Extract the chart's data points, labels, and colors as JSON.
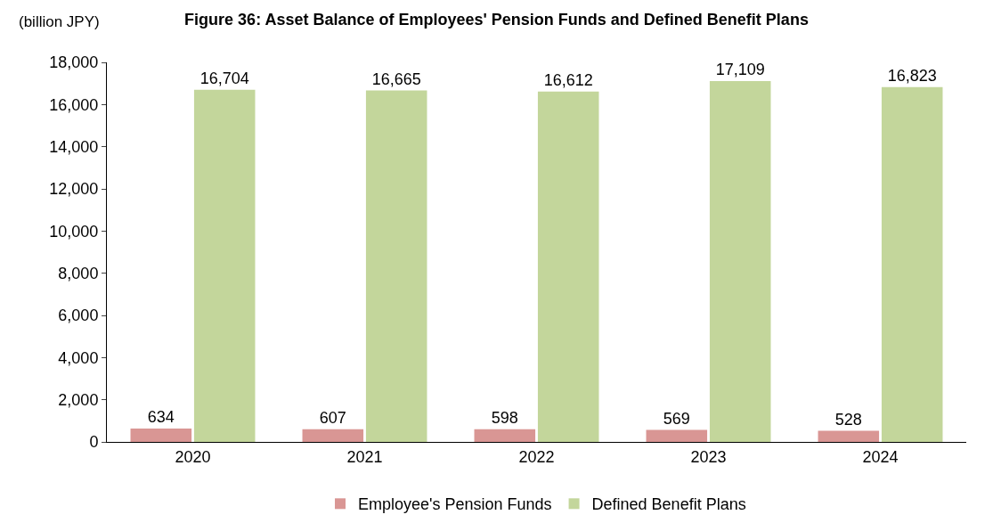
{
  "chart_data": {
    "type": "bar",
    "title": "Figure 36: Asset Balance of Employees' Pension Funds and Defined Benefit Plans",
    "ylabel": "(billion JPY)",
    "categories": [
      "2020",
      "2021",
      "2022",
      "2023",
      "2024"
    ],
    "series": [
      {
        "name": "Employee's Pension Funds",
        "color": "#d99694",
        "values": [
          634,
          607,
          598,
          569,
          528
        ],
        "value_labels": [
          "634",
          "607",
          "598",
          "569",
          "528"
        ]
      },
      {
        "name": "Defined Benefit Plans",
        "color": "#c3d69b",
        "values": [
          16704,
          16665,
          16612,
          17109,
          16823
        ],
        "value_labels": [
          "16,704",
          "16,665",
          "16,612",
          "17,109",
          "16,823"
        ]
      }
    ],
    "ylim": [
      0,
      18000
    ],
    "yticks": [
      {
        "value": 0,
        "label": "0"
      },
      {
        "value": 2000,
        "label": "2,000"
      },
      {
        "value": 4000,
        "label": "4,000"
      },
      {
        "value": 6000,
        "label": "6,000"
      },
      {
        "value": 8000,
        "label": "8,000"
      },
      {
        "value": 10000,
        "label": "10,000"
      },
      {
        "value": 12000,
        "label": "12,000"
      },
      {
        "value": 14000,
        "label": "14,000"
      },
      {
        "value": 16000,
        "label": "16,000"
      },
      {
        "value": 18000,
        "label": "18,000"
      }
    ],
    "grid": false,
    "legend": "bottom"
  }
}
